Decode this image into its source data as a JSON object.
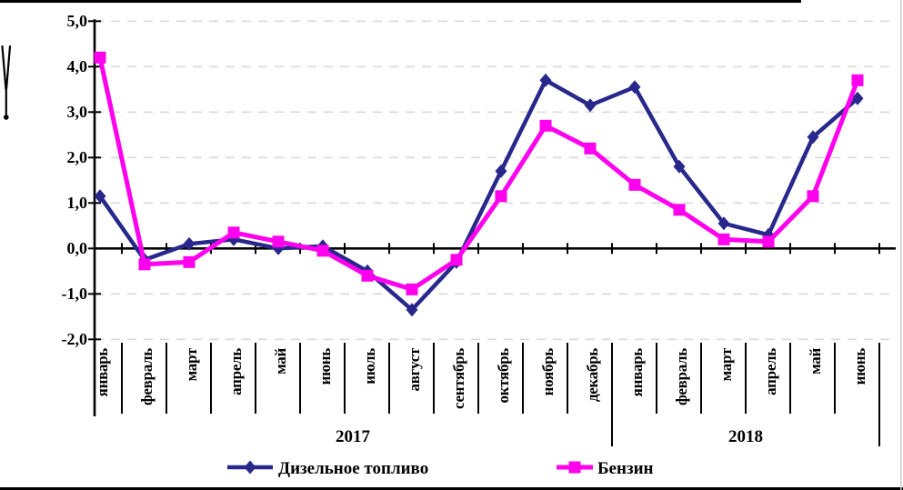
{
  "chart_data": {
    "type": "line",
    "title": "",
    "xlabel": "",
    "ylabel": "",
    "ylim": [
      -2,
      5
    ],
    "ytick_step": 1,
    "ytick_labels": [
      "5,0",
      "4,0",
      "3,0",
      "2,0",
      "1,0",
      "0,0",
      "-1,0",
      "-2,0"
    ],
    "grid": "horizontal-dashed",
    "categories": [
      "январь",
      "февраль",
      "март",
      "апрель",
      "май",
      "июнь",
      "июль",
      "август",
      "сентябрь",
      "октябрь",
      "ноябрь",
      "декабрь",
      "январь",
      "февраль",
      "март",
      "апрель",
      "май",
      "июнь"
    ],
    "year_groups": [
      {
        "label": "2017",
        "months": 12
      },
      {
        "label": "2018",
        "months": 6
      }
    ],
    "series": [
      {
        "name": "Дизельное топливо",
        "color": "#28288C",
        "marker": "diamond",
        "values": [
          1.15,
          -0.25,
          0.1,
          0.2,
          0.0,
          0.05,
          -0.5,
          -1.35,
          -0.3,
          1.7,
          3.7,
          3.15,
          3.55,
          1.8,
          0.55,
          0.3,
          2.45,
          3.3
        ]
      },
      {
        "name": "Бензин",
        "color": "#FF00EE",
        "marker": "square",
        "values": [
          4.2,
          -0.35,
          -0.3,
          0.35,
          0.15,
          -0.05,
          -0.6,
          -0.9,
          -0.25,
          1.15,
          2.7,
          2.2,
          1.4,
          0.85,
          0.2,
          0.15,
          1.15,
          3.7
        ]
      }
    ],
    "legend_position": "bottom",
    "colors": {
      "gridline": "#D9D9D9",
      "axis": "#000000",
      "frame": "#000000"
    }
  }
}
